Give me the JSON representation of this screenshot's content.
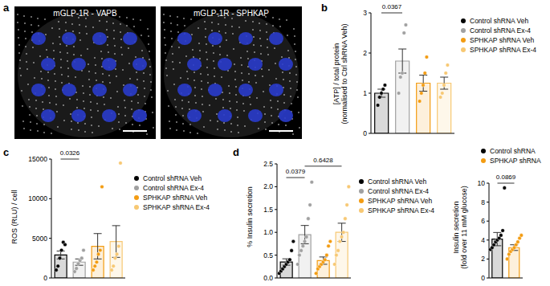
{
  "figure": {
    "panel_labels": [
      "a",
      "b",
      "c",
      "d"
    ],
    "images": [
      "mGLP-1R - VAPB",
      "mGLP-1R - SPHKAP"
    ]
  },
  "chart_data": [
    {
      "type": "bar",
      "ylabel": "[ATP] / total protein\n(normalised to Ctrl shRNA Veh)",
      "categories": [
        "Control shRNA Veh",
        "Control shRNA Ex-4",
        "SPHKAP shRNA Veh",
        "SPHKAP shRNA Ex-4"
      ],
      "values": [
        1.0,
        1.8,
        1.25,
        1.25
      ],
      "error": [
        0.1,
        0.3,
        0.2,
        0.15
      ],
      "points": [
        [
          0.7,
          0.9,
          1.0,
          1.1,
          1.2
        ],
        [
          1.0,
          1.4,
          1.5,
          2.5,
          2.7
        ],
        [
          0.8,
          1.0,
          1.2,
          1.5,
          1.9
        ],
        [
          0.9,
          1.0,
          1.2,
          1.5,
          1.7
        ]
      ],
      "colors": [
        "#000000",
        "#a0a0a0",
        "#f39c12",
        "#f7c873"
      ],
      "ylim": [
        0,
        3
      ],
      "yticks": [
        0,
        1,
        2,
        3
      ],
      "tick_labels": "y",
      "legend": "right",
      "annotations": [
        {
          "text": "0.0367",
          "from": 0,
          "to": 1,
          "y": 3
        }
      ]
    },
    {
      "type": "bar",
      "ylabel": "ROS (RLU) / cell",
      "categories": [
        "Control shRNA Veh",
        "Control shRNA Ex-4",
        "SPHKAP shRNA Veh",
        "SPHKAP shRNA Ex-4"
      ],
      "values": [
        2900,
        2000,
        4000,
        4600
      ],
      "error": [
        500,
        400,
        1600,
        2000
      ],
      "points": [
        [
          1000,
          1500,
          2500,
          3500,
          4500,
          4200
        ],
        [
          800,
          1200,
          1800,
          2200,
          2500,
          3500
        ],
        [
          1000,
          1500,
          2000,
          3000,
          3500,
          11500
        ],
        [
          1000,
          1500,
          2500,
          3000,
          4000,
          14500
        ]
      ],
      "colors": [
        "#000000",
        "#a0a0a0",
        "#f39c12",
        "#f7c873"
      ],
      "ylim": [
        0,
        15000
      ],
      "yticks": [
        0,
        5000,
        10000,
        15000
      ],
      "tick_labels": "y",
      "legend": "right",
      "annotations": [
        {
          "text": "0.0326",
          "from": 0,
          "to": 1,
          "y": 15000
        }
      ]
    },
    {
      "type": "bar",
      "ylabel": "% Insulin secretion",
      "categories": [
        "Control shRNA Veh",
        "Control shRNA Ex-4",
        "SPHKAP shRNA Veh",
        "SPHKAP shRNA Ex-4"
      ],
      "values": [
        0.35,
        0.95,
        0.38,
        1.0
      ],
      "error": [
        0.07,
        0.2,
        0.08,
        0.2
      ],
      "points": [
        [
          0.1,
          0.15,
          0.2,
          0.25,
          0.3,
          0.35,
          0.4,
          0.6,
          0.8
        ],
        [
          0.3,
          0.5,
          0.6,
          0.7,
          0.8,
          0.9,
          1.3,
          1.6,
          2.1
        ],
        [
          0.1,
          0.2,
          0.25,
          0.3,
          0.35,
          0.4,
          0.5,
          0.7,
          0.8
        ],
        [
          0.3,
          0.5,
          0.6,
          0.8,
          0.9,
          1.0,
          1.3,
          1.6,
          2.0
        ]
      ],
      "colors": [
        "#000000",
        "#a0a0a0",
        "#f39c12",
        "#f7c873"
      ],
      "ylim": [
        0,
        2.5
      ],
      "yticks": [
        {
          "value": 0,
          "label": "0.0"
        },
        0.5,
        {
          "value": 1,
          "label": "1.0"
        },
        1.5,
        {
          "value": 2,
          "label": "2.0"
        },
        2.5
      ],
      "tick_labels": "y",
      "legend": "right",
      "annotations": [
        {
          "text": "0.0379",
          "from": 0,
          "to": 1,
          "y": 2.2
        },
        {
          "text": "0.6428",
          "from": 1,
          "to": 3,
          "y": 2.45
        }
      ]
    },
    {
      "type": "bar",
      "ylabel": "Insulin secretion\n(fold over 11 mM glucose)",
      "categories": [
        "Control shRNA",
        "SPHKAP shRNA"
      ],
      "values": [
        4.1,
        3.2
      ],
      "error": [
        0.7,
        0.3
      ],
      "points": [
        [
          3,
          3.2,
          3.5,
          3.8,
          4,
          4.2,
          4.5,
          5,
          9.5
        ],
        [
          2,
          2.5,
          2.8,
          3,
          3.2,
          3.5,
          3.8,
          4.2,
          4.5
        ]
      ],
      "colors": [
        "#000000",
        "#f39c12"
      ],
      "ylim": [
        0,
        10
      ],
      "yticks": [
        0,
        2,
        4,
        6,
        8,
        10
      ],
      "tick_labels": "y",
      "legend": "upper right",
      "annotations": [
        {
          "text": "0.0869",
          "from": 0,
          "to": 1,
          "y": 10
        }
      ]
    }
  ]
}
